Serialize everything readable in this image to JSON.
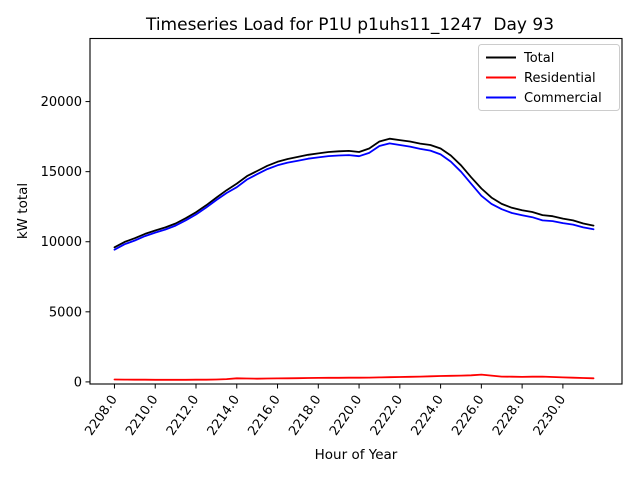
{
  "chart_data": {
    "type": "line",
    "title": "Timeseries Load for P1U p1uhs11_1247  Day 93",
    "xlabel": "Hour of Year",
    "ylabel": "kW total",
    "xlim": [
      2206.8,
      2232.9
    ],
    "ylim": [
      -150,
      24500
    ],
    "grid": false,
    "legend": {
      "position": "upper right",
      "border_color": "#cccccc"
    },
    "xtick_values": [
      2208,
      2210,
      2212,
      2214,
      2216,
      2218,
      2220,
      2222,
      2224,
      2226,
      2228,
      2230
    ],
    "xtick_labels": [
      "2208.0",
      "2210.0",
      "2212.0",
      "2214.0",
      "2216.0",
      "2218.0",
      "2220.0",
      "2222.0",
      "2224.0",
      "2226.0",
      "2228.0",
      "2230.0"
    ],
    "ytick_values": [
      0,
      5000,
      10000,
      15000,
      20000
    ],
    "ytick_labels": [
      "0",
      "5000",
      "10000",
      "15000",
      "20000"
    ],
    "x": [
      2208,
      2208.5,
      2209,
      2209.5,
      2210,
      2210.5,
      2211,
      2211.5,
      2212,
      2212.5,
      2213,
      2213.5,
      2214,
      2214.5,
      2215,
      2215.5,
      2216,
      2216.5,
      2217,
      2217.5,
      2218,
      2218.5,
      2219,
      2219.5,
      2220,
      2220.5,
      2221,
      2221.5,
      2222,
      2222.5,
      2223,
      2223.5,
      2224,
      2224.5,
      2225,
      2225.5,
      2226,
      2226.5,
      2227,
      2227.5,
      2228,
      2228.5,
      2229,
      2229.5,
      2230,
      2230.5,
      2231,
      2231.5
    ],
    "series": [
      {
        "name": "Total",
        "color": "#000000",
        "values": [
          9600,
          9990,
          10250,
          10560,
          10800,
          11020,
          11300,
          11680,
          12100,
          12600,
          13150,
          13680,
          14150,
          14680,
          15050,
          15420,
          15700,
          15900,
          16050,
          16200,
          16300,
          16400,
          16450,
          16480,
          16400,
          16650,
          17150,
          17350,
          17250,
          17150,
          17000,
          16900,
          16650,
          16150,
          15450,
          14600,
          13800,
          13150,
          12700,
          12420,
          12250,
          12120,
          11900,
          11820,
          11650,
          11520,
          11300,
          11150
        ]
      },
      {
        "name": "Residential",
        "color": "#ff0000",
        "values": [
          170,
          165,
          160,
          155,
          150,
          148,
          150,
          152,
          155,
          160,
          170,
          200,
          260,
          240,
          230,
          240,
          250,
          255,
          265,
          275,
          285,
          290,
          295,
          300,
          300,
          310,
          320,
          335,
          350,
          365,
          380,
          400,
          420,
          435,
          450,
          470,
          520,
          450,
          380,
          370,
          360,
          370,
          380,
          350,
          320,
          300,
          280,
          260
        ]
      },
      {
        "name": "Commercial",
        "color": "#0000ff",
        "values": [
          9430,
          9825,
          10090,
          10405,
          10650,
          10870,
          11150,
          11530,
          11945,
          12440,
          12980,
          13480,
          13890,
          14440,
          14820,
          15180,
          15450,
          15645,
          15785,
          15925,
          16015,
          16110,
          16155,
          16180,
          16100,
          16340,
          16830,
          17015,
          16900,
          16785,
          16620,
          16500,
          16230,
          15715,
          15000,
          14130,
          13280,
          12700,
          12320,
          12050,
          11890,
          11750,
          11520,
          11470,
          11330,
          11220,
          11020,
          10890
        ]
      }
    ]
  }
}
